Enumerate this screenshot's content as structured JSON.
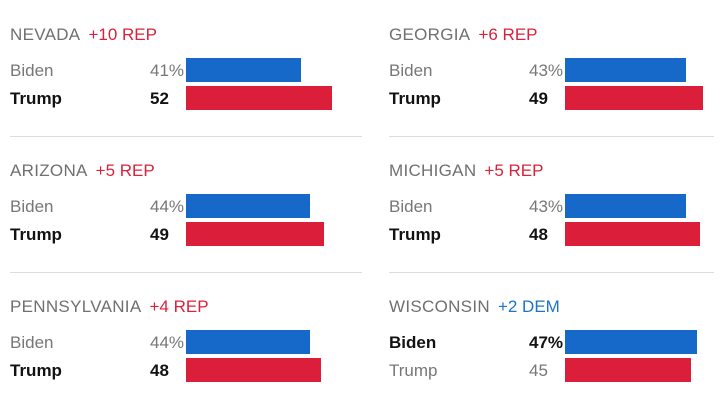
{
  "colors": {
    "rep": "#d9223b",
    "dem": "#1a76c9",
    "bar_dem": "#1669c9",
    "bar_rep": "#db1f3b"
  },
  "chart_data": {
    "type": "bar",
    "title": "",
    "max_value": 52,
    "states": [
      {
        "state": "NEVADA",
        "margin": "+10 REP",
        "margin_party": "rep",
        "leader": "Trump",
        "rows": [
          {
            "candidate": "Biden",
            "label": "41%",
            "value": 41
          },
          {
            "candidate": "Trump",
            "label": "52",
            "value": 52
          }
        ]
      },
      {
        "state": "GEORGIA",
        "margin": "+6 REP",
        "margin_party": "rep",
        "leader": "Trump",
        "rows": [
          {
            "candidate": "Biden",
            "label": "43%",
            "value": 43
          },
          {
            "candidate": "Trump",
            "label": "49",
            "value": 49
          }
        ]
      },
      {
        "state": "ARIZONA",
        "margin": "+5 REP",
        "margin_party": "rep",
        "leader": "Trump",
        "rows": [
          {
            "candidate": "Biden",
            "label": "44%",
            "value": 44
          },
          {
            "candidate": "Trump",
            "label": "49",
            "value": 49
          }
        ]
      },
      {
        "state": "MICHIGAN",
        "margin": "+5 REP",
        "margin_party": "rep",
        "leader": "Trump",
        "rows": [
          {
            "candidate": "Biden",
            "label": "43%",
            "value": 43
          },
          {
            "candidate": "Trump",
            "label": "48",
            "value": 48
          }
        ]
      },
      {
        "state": "PENNSYLVANIA",
        "margin": "+4 REP",
        "margin_party": "rep",
        "leader": "Trump",
        "rows": [
          {
            "candidate": "Biden",
            "label": "44%",
            "value": 44
          },
          {
            "candidate": "Trump",
            "label": "48",
            "value": 48
          }
        ]
      },
      {
        "state": "WISCONSIN",
        "margin": "+2 DEM",
        "margin_party": "dem",
        "leader": "Biden",
        "rows": [
          {
            "candidate": "Biden",
            "label": "47%",
            "value": 47
          },
          {
            "candidate": "Trump",
            "label": "45",
            "value": 45
          }
        ]
      }
    ]
  }
}
